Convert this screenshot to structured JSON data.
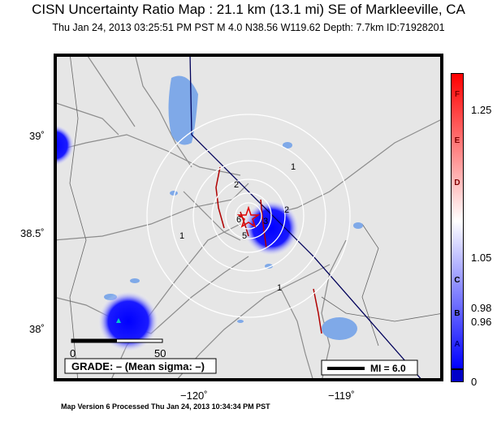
{
  "header": {
    "title": "CISN Uncertainty Ratio Map : 21.1 km (13.1 mi) SE of Markleeville, CA",
    "subtitle": "Thu Jan 24, 2013 03:25:51 PM PST    M 4.0    N38.56 W119.62    Depth: 7.7km    ID:71928201"
  },
  "map": {
    "lat_labels": [
      "39˚",
      "38.5˚",
      "38˚"
    ],
    "lon_labels": [
      "−120˚",
      "−119˚"
    ],
    "contour_labels": [
      "1",
      "2",
      "1",
      "2",
      "5",
      "6",
      "3",
      "1"
    ],
    "scale_bar": {
      "left": "0",
      "right": "50"
    },
    "grade_text": "GRADE: – (Mean sigma: –)",
    "mi_label": "MI = 6.0",
    "colors": {
      "land": "#e8e8e8",
      "water": "#7fa9e8",
      "roads": "#8c8c8c",
      "border": "#00005a",
      "faults": "#b00000"
    }
  },
  "colorbar": {
    "letters": [
      "F",
      "E",
      "D",
      "C",
      "B",
      "A"
    ],
    "ticks": [
      "1.25",
      "1.05",
      "0.98",
      "0.96",
      "0"
    ],
    "top_color": "#ff0000",
    "mid_color": "#ffffff",
    "bottom_color": "#0000ff"
  },
  "footer": "Map Version 6 Processed Thu Jan 24, 2013 10:34:34 PM PST"
}
